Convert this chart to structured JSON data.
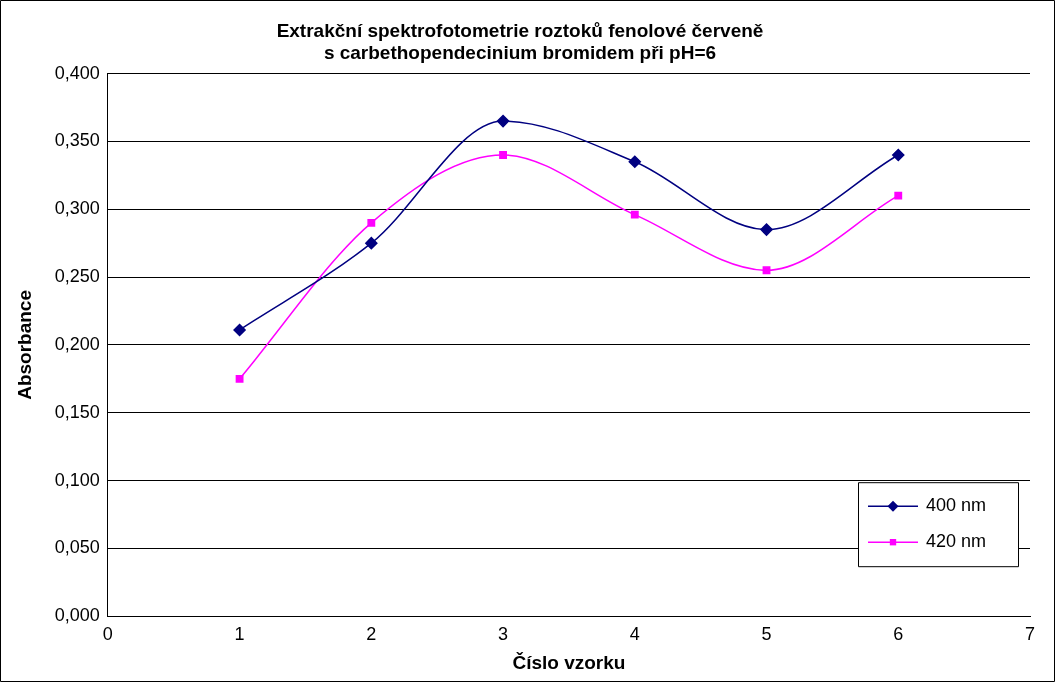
{
  "chart_data": {
    "type": "line",
    "title": "Extrakční spektrofotometrie roztoků fenolové červeně\ns carbethopendecinium bromidem při pH=6",
    "xlabel": "Číslo vzorku",
    "ylabel": "Absorbance",
    "x": [
      1,
      2,
      3,
      4,
      5,
      6
    ],
    "series": [
      {
        "name": "400 nm",
        "color": "#000080",
        "marker": "diamond",
        "values": [
          0.211,
          0.275,
          0.365,
          0.335,
          0.285,
          0.34
        ]
      },
      {
        "name": "420 nm",
        "color": "#ff00ff",
        "marker": "square",
        "values": [
          0.175,
          0.29,
          0.34,
          0.296,
          0.255,
          0.31
        ]
      }
    ],
    "xlim": [
      0,
      7
    ],
    "xticks": [
      0,
      1,
      2,
      3,
      4,
      5,
      6,
      7
    ],
    "ylim": [
      0,
      0.4
    ],
    "yticks": [
      {
        "value": 0,
        "label": "0,000"
      },
      {
        "value": 0.05,
        "label": "0,050"
      },
      {
        "value": 0.1,
        "label": "0,100"
      },
      {
        "value": 0.15,
        "label": "0,150"
      },
      {
        "value": 0.2,
        "label": "0,200"
      },
      {
        "value": 0.25,
        "label": "0,250"
      },
      {
        "value": 0.3,
        "label": "0,300"
      },
      {
        "value": 0.35,
        "label": "0,350"
      },
      {
        "value": 0.4,
        "label": "0,400"
      }
    ],
    "grid": "y",
    "legend": "bottom right",
    "line_style": "solid"
  }
}
